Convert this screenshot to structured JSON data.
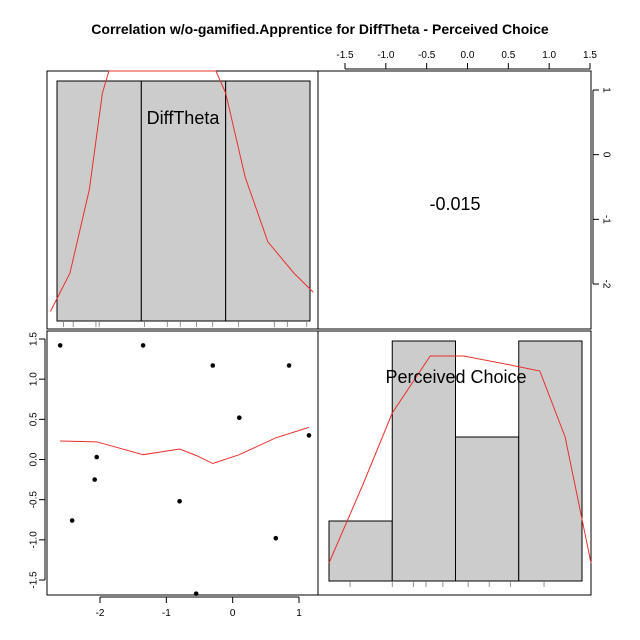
{
  "chart_data": {
    "type": "scatter-matrix",
    "title": "Correlation w/o-gamified.Apprentice for DiffTheta - Perceived Choice",
    "variables": [
      "DiffTheta",
      "Perceived Choice"
    ],
    "correlation_label": "-0.015",
    "diff_theta_axis": {
      "range": [
        -2.8,
        1.25
      ],
      "ticks": [
        -2,
        -1,
        0,
        1
      ],
      "tick_labels": [
        "-2",
        "-1",
        "0",
        "1"
      ]
    },
    "perceived_choice_axis": {
      "range": [
        -1.75,
        1.55
      ],
      "ticks": [
        -1.5,
        -1.0,
        -0.5,
        0.0,
        0.5,
        1.0,
        1.5
      ],
      "tick_labels": [
        "-1.5",
        "-1.0",
        "-0.5",
        "0.0",
        "0.5",
        "1.0",
        "1.5"
      ]
    },
    "upper_right_axis": {
      "ticks": [
        1,
        0,
        -1,
        -2
      ],
      "tick_labels": [
        "1",
        "0",
        "-1",
        "-2"
      ]
    },
    "scatter_points": [
      {
        "x": -2.6,
        "y": 1.42
      },
      {
        "x": -1.35,
        "y": 1.42
      },
      {
        "x": -0.3,
        "y": 1.17
      },
      {
        "x": 0.85,
        "y": 1.17
      },
      {
        "x": 0.1,
        "y": 0.52
      },
      {
        "x": 1.15,
        "y": 0.3
      },
      {
        "x": -2.05,
        "y": 0.03
      },
      {
        "x": -2.08,
        "y": -0.25
      },
      {
        "x": -0.8,
        "y": -0.52
      },
      {
        "x": -2.42,
        "y": -0.76
      },
      {
        "x": 0.65,
        "y": -0.98
      },
      {
        "x": -0.55,
        "y": -1.67
      }
    ],
    "lowess": [
      {
        "x": -2.6,
        "y": 0.23
      },
      {
        "x": -2.05,
        "y": 0.22
      },
      {
        "x": -1.35,
        "y": 0.06
      },
      {
        "x": -0.8,
        "y": 0.13
      },
      {
        "x": -0.55,
        "y": 0.05
      },
      {
        "x": -0.3,
        "y": -0.05
      },
      {
        "x": 0.1,
        "y": 0.06
      },
      {
        "x": 0.65,
        "y": 0.27
      },
      {
        "x": 1.15,
        "y": 0.4
      }
    ],
    "diff_theta_hist": {
      "breaks": [
        -2.7,
        -1.4,
        -0.1,
        1.2
      ],
      "counts": [
        4,
        4,
        4
      ],
      "rug": [
        -2.6,
        -2.45,
        -2.1,
        -2.05,
        -1.35,
        -1.0,
        -0.8,
        -0.55,
        -0.3,
        0.1,
        0.65,
        0.85,
        1.15
      ],
      "density": [
        {
          "x": -2.8,
          "y": 0.04
        },
        {
          "x": -2.5,
          "y": 0.2
        },
        {
          "x": -2.2,
          "y": 0.55
        },
        {
          "x": -2.0,
          "y": 0.95
        },
        {
          "x": -1.9,
          "y": 1.2
        },
        {
          "x": -0.25,
          "y": 1.2
        },
        {
          "x": -0.1,
          "y": 0.95
        },
        {
          "x": 0.2,
          "y": 0.6
        },
        {
          "x": 0.55,
          "y": 0.33
        },
        {
          "x": 0.95,
          "y": 0.2
        },
        {
          "x": 1.25,
          "y": 0.12
        }
      ]
    },
    "perceived_choice_hist": {
      "breaks": [
        -1.6,
        -0.85,
        -0.1,
        0.65,
        1.4
      ],
      "counts": [
        1,
        4,
        2.4,
        4
      ],
      "rug": [
        -1.35,
        -0.85,
        -0.6,
        -0.45,
        -0.25,
        0.05,
        0.3,
        0.55,
        0.95
      ],
      "density": [
        {
          "x": -1.6,
          "y": 0.3
        },
        {
          "x": -1.2,
          "y": 1.6
        },
        {
          "x": -0.85,
          "y": 2.8
        },
        {
          "x": -0.4,
          "y": 3.75
        },
        {
          "x": 0.0,
          "y": 3.75
        },
        {
          "x": 0.55,
          "y": 3.6
        },
        {
          "x": 0.9,
          "y": 3.5
        },
        {
          "x": 1.2,
          "y": 2.4
        },
        {
          "x": 1.6,
          "y": 0.3
        }
      ]
    }
  }
}
